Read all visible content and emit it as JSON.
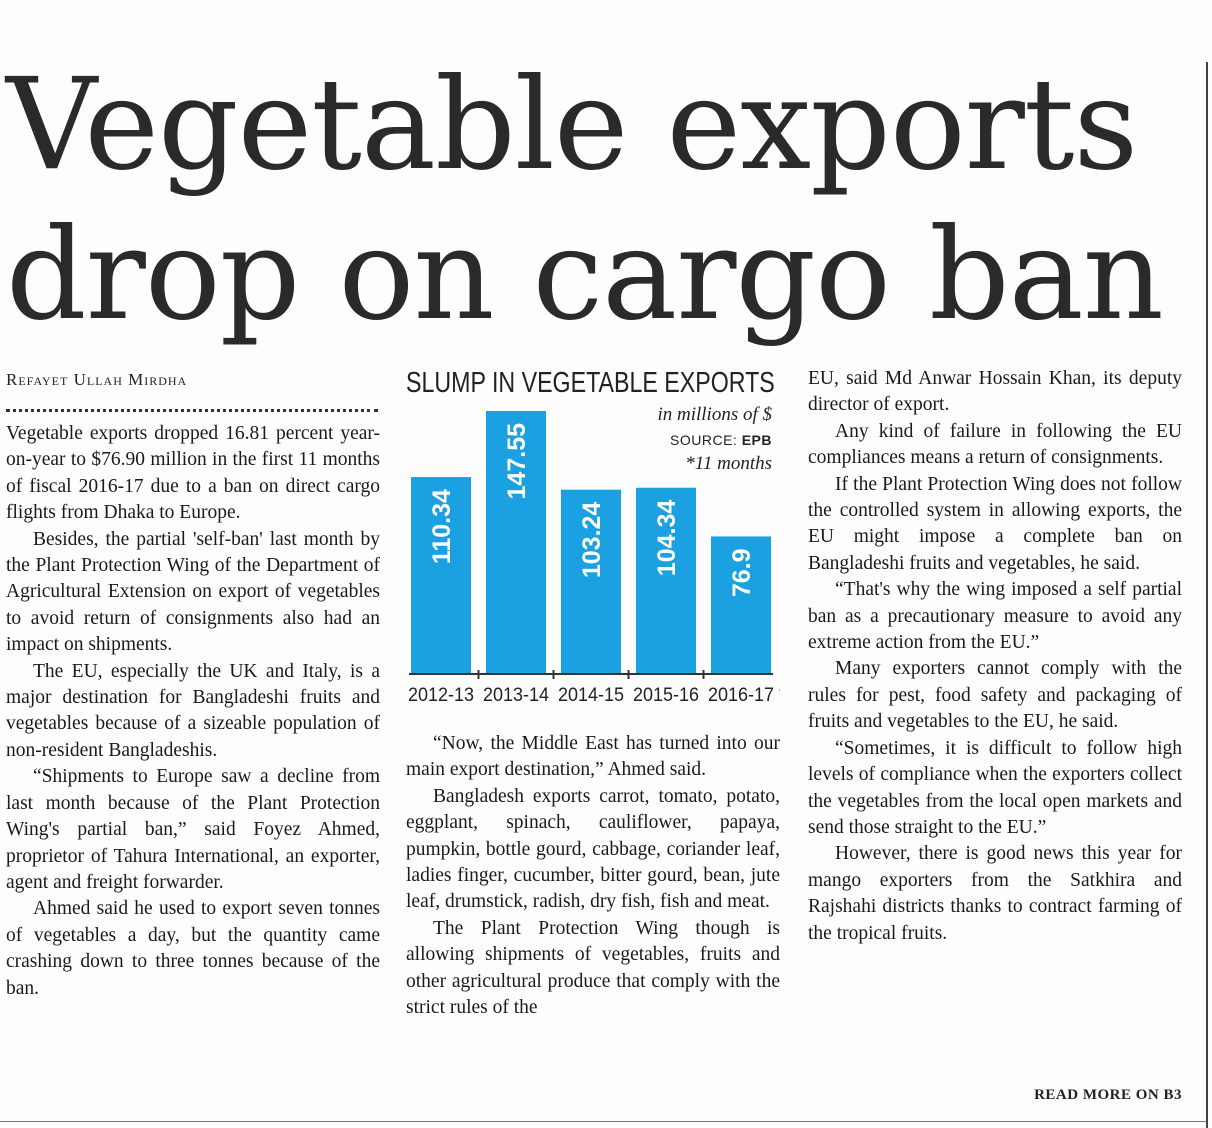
{
  "headline": {
    "line1": "Vegetable exports",
    "line2": "drop on cargo ban"
  },
  "byline": "Refayet Ullah Mirdha",
  "column1": [
    "Vegetable exports dropped 16.81 percent year-on-year to $76.90 million in the first 11 months of fiscal 2016-17 due to a ban on direct cargo flights from Dhaka to Europe.",
    "Besides, the partial 'self-ban' last month by the Plant Protection Wing of the Department of Agricultural Extension on export of vegetables to avoid return of consignments also had an impact on shipments.",
    "The EU, especially the UK and Italy, is a major destination for Bangladeshi fruits and vegetables because of a sizeable population of non-resident Bangladeshis.",
    "“Shipments to Europe saw a decline from last month because of the Plant Protection Wing's partial ban,” said Foyez Ahmed, proprietor of Tahura International, an exporter, agent and freight forwarder.",
    "Ahmed said he used to export seven tonnes of vegetables a day, but the quantity came crashing down to three tonnes because of the ban."
  ],
  "column2": [
    "“Now, the Middle East has turned into our main export destination,” Ahmed said.",
    "Bangladesh exports carrot, tomato, potato, eggplant, spinach, cauliflower, papaya, pumpkin, bottle gourd, cabbage, coriander leaf, ladies finger, cucumber, bitter gourd, bean, jute leaf, drumstick, radish, dry fish, fish and meat.",
    "The Plant Protection Wing though is allowing shipments of vegetables, fruits and other agricultural produce that comply with the strict rules of the"
  ],
  "column3": [
    "EU, said Md Anwar Hossain Khan, its deputy director of export.",
    "Any kind of failure in following the EU compliances means a return of consignments.",
    "If the Plant Protection Wing does not follow the controlled system in allowing exports, the EU might impose a complete ban on Bangladeshi fruits and vegetables, he said.",
    "“That's why the wing imposed a self partial ban as a precautionary measure to avoid any extreme action from the EU.”",
    "Many exporters cannot comply with the rules for pest, food safety and packaging of fruits and vegetables to the EU, he said.",
    "“Sometimes, it is difficult to follow high levels of compliance when the exporters collect the vegetables from the local open markets and send those straight to the EU.”",
    "However, there is good news this year for mango exporters from the Satkhira and Rajshahi districts thanks to contract farming of the tropical fruits."
  ],
  "read_more": "READ MORE ON B3",
  "chart_data": {
    "type": "bar",
    "title": "SLUMP IN VEGETABLE EXPORTS",
    "unit": "in millions of $",
    "source_label": "SOURCE: ",
    "source_name": "EPB",
    "footnote": "*11 months",
    "categories": [
      "2012-13",
      "2013-14",
      "2014-15",
      "2015-16",
      "2016-17 *"
    ],
    "values": [
      110.34,
      147.55,
      103.24,
      104.34,
      76.9
    ],
    "data_labels": [
      "110.34",
      "147.55",
      "103.24",
      "104.34",
      "76.9"
    ],
    "ylim": [
      0,
      147.55
    ],
    "bar_color": "#1ba1e2",
    "label_color": "#ffffff",
    "grid": false,
    "legend": "none"
  }
}
